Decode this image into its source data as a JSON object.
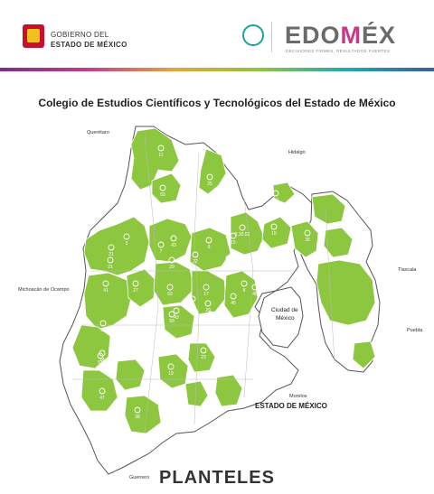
{
  "header": {
    "gov_line1": "GOBIERNO DEL",
    "gov_line2": "ESTADO DE MÉXICO",
    "brand_left": "EDO",
    "brand_mid": "M",
    "brand_right": "ÉX",
    "brand_subtitle": "DECISIONES FIRMES, RESULTADOS FUERTES",
    "colors": {
      "seal_red": "#c8102e",
      "seal_gold": "#f0c020",
      "brand_magenta": "#c43b8a",
      "brand_grey": "#6a6a6a"
    }
  },
  "title": "Colegio de Estudios Científicos y Tecnológicos del Estado de México",
  "map": {
    "colors": {
      "plantel_area": "#8dc63f",
      "state_background": "#ffffff",
      "outline": "#555555",
      "marker_fill": "#ffffff",
      "marker_text": "#ffffff"
    },
    "neighbor_labels": [
      "Querétaro",
      "Hidalgo",
      "Michoacán de Ocampo",
      "Tlaxcala",
      "Puebla",
      "Morelos",
      "Guerrero"
    ],
    "city_label_line1": "Ciudad de",
    "city_label_line2": "México",
    "state_label": "ESTADO DE MÉXICO",
    "planteles": [
      "11",
      "55",
      "25",
      "21",
      "3",
      "7",
      "43",
      "9",
      "15",
      "2,30,52",
      "15",
      "50",
      "35",
      "21",
      "29",
      "22",
      "23",
      "41",
      "27",
      "60",
      "17",
      "45",
      "48",
      "58",
      "34",
      "43",
      "8",
      "29",
      "36,44",
      "54",
      "24",
      "39",
      "53",
      "47",
      "19",
      "23",
      "38"
    ]
  },
  "footer": "PLANTELES"
}
